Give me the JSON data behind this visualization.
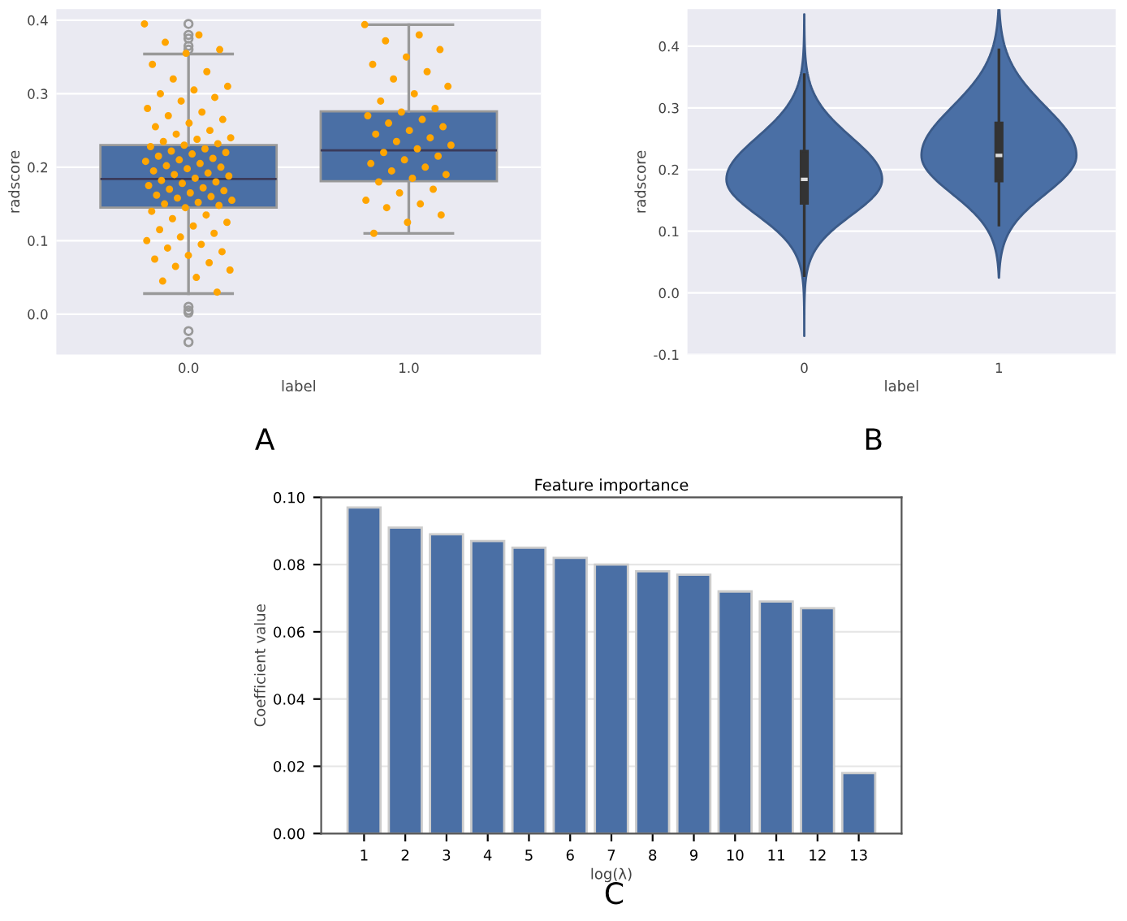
{
  "chart_data": [
    {
      "type": "box",
      "xlabel": "label",
      "ylabel": "radscore",
      "categories": [
        "0.0",
        "1.0"
      ],
      "color": "#4a6fa5",
      "ylim": [
        -0.055,
        0.415
      ],
      "yticks": [
        {
          "value": 0.0,
          "label": "0.0"
        },
        0.1,
        0.2,
        0.3,
        0.4
      ],
      "grid": "y",
      "annotations": [
        "A"
      ],
      "boxes": [
        {
          "low": 0.028,
          "q1": 0.145,
          "median": 0.184,
          "q3": 0.23,
          "high": 0.354,
          "outliers": [
            0.395,
            0.38,
            0.375,
            0.365,
            0.36,
            0.01,
            0.005,
            0.002,
            -0.023,
            -0.038
          ]
        },
        {
          "low": 0.11,
          "q1": 0.181,
          "median": 0.223,
          "q3": 0.276,
          "high": 0.394
        }
      ],
      "series": [
        {
          "type": "scatter",
          "color": "#ffa500",
          "x": [
            "0.0",
            "0.0",
            "0.0",
            "0.0",
            "0.0",
            "0.0",
            "0.0",
            "0.0",
            "0.0",
            "0.0",
            "0.0",
            "0.0",
            "0.0",
            "0.0",
            "0.0",
            "0.0",
            "0.0",
            "0.0",
            "0.0",
            "0.0",
            "0.0",
            "0.0",
            "0.0",
            "0.0",
            "0.0",
            "0.0",
            "0.0",
            "0.0",
            "0.0",
            "0.0",
            "0.0",
            "0.0",
            "0.0",
            "0.0",
            "0.0",
            "0.0",
            "0.0",
            "0.0",
            "0.0",
            "0.0",
            "0.0",
            "0.0",
            "0.0",
            "0.0",
            "0.0",
            "0.0",
            "0.0",
            "0.0",
            "0.0",
            "0.0",
            "0.0",
            "0.0",
            "0.0",
            "0.0",
            "0.0",
            "0.0",
            "0.0",
            "0.0",
            "0.0",
            "0.0",
            "0.0",
            "0.0",
            "0.0",
            "0.0",
            "0.0",
            "0.0",
            "0.0",
            "0.0",
            "0.0",
            "0.0",
            "0.0",
            "0.0",
            "0.0",
            "0.0",
            "0.0",
            "0.0",
            "0.0",
            "0.0",
            "0.0",
            "0.0"
          ],
          "values": [
            0.395,
            0.38,
            0.37,
            0.36,
            0.355,
            0.34,
            0.33,
            0.32,
            0.31,
            0.305,
            0.3,
            0.295,
            0.29,
            0.28,
            0.275,
            0.27,
            0.265,
            0.26,
            0.255,
            0.25,
            0.245,
            0.24,
            0.238,
            0.235,
            0.232,
            0.23,
            0.228,
            0.225,
            0.222,
            0.22,
            0.218,
            0.215,
            0.212,
            0.21,
            0.208,
            0.205,
            0.202,
            0.2,
            0.198,
            0.195,
            0.192,
            0.19,
            0.188,
            0.185,
            0.182,
            0.18,
            0.178,
            0.175,
            0.172,
            0.17,
            0.168,
            0.165,
            0.162,
            0.16,
            0.158,
            0.155,
            0.152,
            0.15,
            0.148,
            0.145,
            0.14,
            0.135,
            0.13,
            0.125,
            0.12,
            0.115,
            0.11,
            0.105,
            0.1,
            0.095,
            0.09,
            0.085,
            0.08,
            0.075,
            0.07,
            0.065,
            0.06,
            0.05,
            0.045,
            0.03
          ]
        },
        {
          "type": "scatter",
          "color": "#ffa500",
          "x": [
            "1.0",
            "1.0",
            "1.0",
            "1.0",
            "1.0",
            "1.0",
            "1.0",
            "1.0",
            "1.0",
            "1.0",
            "1.0",
            "1.0",
            "1.0",
            "1.0",
            "1.0",
            "1.0",
            "1.0",
            "1.0",
            "1.0",
            "1.0",
            "1.0",
            "1.0",
            "1.0",
            "1.0",
            "1.0",
            "1.0",
            "1.0",
            "1.0",
            "1.0",
            "1.0",
            "1.0",
            "1.0",
            "1.0",
            "1.0",
            "1.0",
            "1.0",
            "1.0",
            "1.0",
            "1.0",
            "1.0"
          ],
          "values": [
            0.394,
            0.38,
            0.372,
            0.36,
            0.35,
            0.34,
            0.33,
            0.32,
            0.31,
            0.3,
            0.29,
            0.28,
            0.275,
            0.27,
            0.265,
            0.26,
            0.255,
            0.25,
            0.245,
            0.24,
            0.235,
            0.23,
            0.225,
            0.22,
            0.215,
            0.21,
            0.205,
            0.2,
            0.195,
            0.19,
            0.185,
            0.18,
            0.17,
            0.165,
            0.155,
            0.15,
            0.145,
            0.135,
            0.125,
            0.11
          ]
        }
      ]
    },
    {
      "type": "box",
      "xlabel": "label",
      "ylabel": "radscore",
      "categories": [
        "0",
        "1"
      ],
      "color": "#333333",
      "ylim": [
        -0.1,
        0.46
      ],
      "yticks": [
        -0.1,
        {
          "value": 0.0,
          "label": "0.0"
        },
        0.1,
        0.2,
        0.3,
        0.4
      ],
      "grid": "y",
      "annotations": [
        "B"
      ],
      "boxes": [
        {
          "low": 0.028,
          "q1": 0.145,
          "median": 0.184,
          "q3": 0.23,
          "high": 0.354
        },
        {
          "low": 0.11,
          "q1": 0.181,
          "median": 0.223,
          "q3": 0.276,
          "high": 0.394
        }
      ]
    },
    {
      "type": "bar",
      "title": "Feature importance",
      "xlabel": "log(λ)",
      "ylabel": "Coefficient value",
      "categories": [
        "1",
        "2",
        "3",
        "4",
        "5",
        "6",
        "7",
        "8",
        "9",
        "10",
        "11",
        "12",
        "13"
      ],
      "color": "#4a6fa5",
      "values": [
        0.097,
        0.091,
        0.089,
        0.087,
        0.085,
        0.082,
        0.08,
        0.078,
        0.077,
        0.072,
        0.069,
        0.067,
        0.018
      ],
      "ylim": [
        0,
        0.1
      ],
      "yticks": [
        {
          "value": 0,
          "label": "0.00"
        },
        {
          "value": 0.02,
          "label": "0.02"
        },
        {
          "value": 0.04,
          "label": "0.04"
        },
        {
          "value": 0.06,
          "label": "0.06"
        },
        {
          "value": 0.08,
          "label": "0.08"
        },
        {
          "value": 0.1,
          "label": "0.10"
        }
      ],
      "grid": "y",
      "annotations": [
        "C"
      ]
    }
  ]
}
